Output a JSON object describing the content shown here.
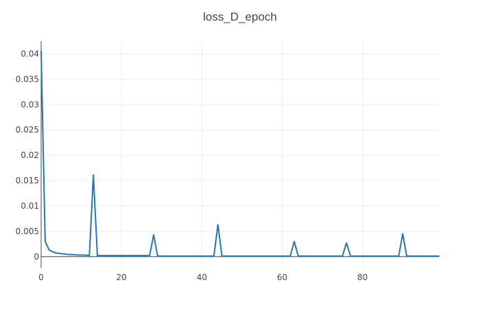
{
  "chart_data": {
    "type": "line",
    "title": "loss_D_epoch",
    "xlabel": "",
    "ylabel": "",
    "xlim": [
      0,
      99
    ],
    "ylim": [
      -0.0022,
      0.0425
    ],
    "grid": true,
    "legend": "none",
    "colors": {
      "series": "#1f77b4",
      "grid": "#eeeeee",
      "axis": "#444444",
      "text": "#444444"
    },
    "x_ticks": [
      {
        "value": 0,
        "label": "0"
      },
      {
        "value": 20,
        "label": "20"
      },
      {
        "value": 40,
        "label": "40"
      },
      {
        "value": 60,
        "label": "60"
      },
      {
        "value": 80,
        "label": "80"
      }
    ],
    "y_ticks": [
      {
        "value": 0,
        "label": "0"
      },
      {
        "value": 0.005,
        "label": "0.005"
      },
      {
        "value": 0.01,
        "label": "0.01"
      },
      {
        "value": 0.015,
        "label": "0.015"
      },
      {
        "value": 0.02,
        "label": "0.02"
      },
      {
        "value": 0.025,
        "label": "0.025"
      },
      {
        "value": 0.03,
        "label": "0.03"
      },
      {
        "value": 0.035,
        "label": "0.035"
      },
      {
        "value": 0.04,
        "label": "0.04"
      }
    ],
    "series": [
      {
        "x": [
          0,
          1,
          2,
          3,
          4,
          5,
          6,
          7,
          8,
          9,
          10,
          11,
          12,
          13,
          14,
          15,
          16,
          17,
          18,
          19,
          20,
          21,
          22,
          23,
          24,
          25,
          26,
          27,
          28,
          29,
          30,
          31,
          32,
          33,
          34,
          35,
          36,
          37,
          38,
          39,
          40,
          41,
          42,
          43,
          44,
          45,
          46,
          47,
          48,
          49,
          50,
          51,
          52,
          53,
          54,
          55,
          56,
          57,
          58,
          59,
          60,
          61,
          62,
          63,
          64,
          65,
          66,
          67,
          68,
          69,
          70,
          71,
          72,
          73,
          74,
          75,
          76,
          77,
          78,
          79,
          80,
          81,
          82,
          83,
          84,
          85,
          86,
          87,
          88,
          89,
          90,
          91,
          92,
          93,
          94,
          95,
          96,
          97,
          98,
          99
        ],
        "y": [
          0.0405,
          0.003,
          0.0013,
          0.0009,
          0.0007,
          0.0006,
          0.0005,
          0.0004,
          0.0004,
          0.0003,
          0.0003,
          0.0003,
          0.0002,
          0.0161,
          0.0002,
          0.0002,
          0.0002,
          0.0002,
          0.0002,
          0.0002,
          0.0002,
          0.0002,
          0.0002,
          0.0002,
          0.0002,
          0.0002,
          0.0002,
          0.0002,
          0.0043,
          0.0001,
          0.0001,
          0.0001,
          0.0001,
          0.0001,
          0.0001,
          0.0001,
          0.0001,
          0.0001,
          0.0001,
          0.0001,
          0.0001,
          0.0001,
          0.0001,
          0.0001,
          0.0063,
          0.0001,
          0.0001,
          0.0001,
          0.0001,
          0.0001,
          0.0001,
          0.0001,
          0.0001,
          0.0001,
          0.0001,
          0.0001,
          0.0001,
          0.0001,
          0.0001,
          0.0001,
          0.0001,
          0.0001,
          0.0001,
          0.003,
          0.0001,
          0.0001,
          0.0001,
          0.0001,
          0.0001,
          0.0001,
          0.0001,
          0.0001,
          0.0001,
          0.0001,
          0.0001,
          0.0001,
          0.0027,
          0.0001,
          0.0001,
          0.0001,
          0.0001,
          0.0001,
          0.0001,
          0.0001,
          0.0001,
          0.0001,
          0.0001,
          0.0001,
          0.0001,
          0.0001,
          0.0045,
          0.0001,
          0.0001,
          0.0001,
          0.0001,
          0.0001,
          0.0001,
          0.0001,
          0.0001,
          0.0001
        ]
      }
    ]
  }
}
